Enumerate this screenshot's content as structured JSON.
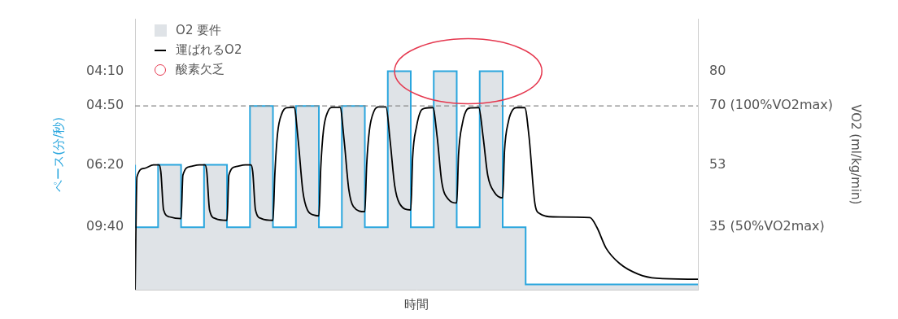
{
  "chart_data": {
    "type": "line",
    "x_label": "時間",
    "y_label": "ペース(分/秒)",
    "y2_label": "VO2 (ml/kg/min)",
    "xlim": [
      0,
      24.5
    ],
    "ylim": [
      17,
      95
    ],
    "yticks": [
      {
        "value": 35,
        "label": "09:40"
      },
      {
        "value": 53,
        "label": "06:20"
      },
      {
        "value": 70,
        "label": "04:50"
      },
      {
        "value": 80,
        "label": "04:10"
      }
    ],
    "y2lim": [
      17,
      95
    ],
    "y2ticks": [
      {
        "value": 35,
        "label": "35 (50%VO2max)"
      },
      53,
      {
        "value": 70,
        "label": "70 (100%VO2max)"
      },
      80
    ],
    "hline": 70,
    "grid": false,
    "legend": "upper left",
    "tick_labels": "y",
    "series": [
      {
        "name": "O2 要件",
        "type": "area",
        "line_style": "stepped",
        "color": "#2aa6de",
        "x": [
          0,
          1,
          2,
          3,
          4,
          5,
          6,
          7,
          8,
          9,
          10,
          11,
          12,
          13,
          14,
          15,
          16,
          17,
          20,
          24.5
        ],
        "values": [
          53,
          35,
          53,
          35,
          53,
          35,
          70,
          35,
          70,
          35,
          70,
          35,
          80,
          35,
          80,
          35,
          80,
          35,
          18.5,
          18.5
        ]
      },
      {
        "name": "運ばれるO2",
        "type": "line",
        "color": "#000000",
        "x": [
          0,
          0.08,
          0.4,
          0.8,
          1.04,
          1.12,
          1.24,
          1.5,
          2,
          2.08,
          2.4,
          2.8,
          3.04,
          3.12,
          3.24,
          3.5,
          4,
          4.08,
          4.4,
          4.8,
          5.04,
          5.12,
          5.24,
          5.5,
          6,
          6.08,
          6.2,
          6.4,
          6.6,
          6.92,
          7.1,
          7.3,
          7.5,
          7.8,
          8,
          8.08,
          8.2,
          8.4,
          8.6,
          8.92,
          9.1,
          9.3,
          9.5,
          10,
          10.08,
          10.2,
          10.4,
          10.6,
          10.92,
          11.1,
          11.3,
          11.5,
          12,
          12.08,
          12.25,
          12.45,
          12.6,
          12.96,
          13.15,
          13.35,
          13.65,
          14,
          14.08,
          14.25,
          14.45,
          14.6,
          14.96,
          15.15,
          15.35,
          15.65,
          16,
          16.08,
          16.25,
          16.45,
          16.6,
          16.96,
          17.15,
          17.4,
          17.6,
          18.2,
          19.8,
          20.1,
          20.5,
          21.1,
          21.9,
          22.7,
          24.5
        ],
        "values": [
          17,
          49.5,
          52,
          53,
          53,
          51,
          40,
          38,
          37.5,
          50,
          52.5,
          53,
          53,
          51,
          40,
          37.5,
          37,
          50,
          52.5,
          53,
          53,
          51,
          40,
          37.5,
          37,
          50,
          62,
          68,
          69.5,
          69.6,
          60,
          45.5,
          40,
          38.5,
          38.3,
          52,
          63,
          68.5,
          69.6,
          69.6,
          60,
          46,
          41,
          39.5,
          53,
          63,
          68.5,
          69.7,
          69.7,
          60,
          47,
          42,
          40,
          55,
          64,
          68.7,
          69.3,
          69.5,
          61,
          48,
          43,
          42,
          56,
          65,
          69,
          69.4,
          69.5,
          61,
          50,
          45,
          43.5,
          57,
          65.5,
          69,
          69.5,
          69.5,
          61,
          42,
          39,
          38,
          37.8,
          35,
          29,
          24.5,
          21.5,
          20.3,
          20
        ]
      }
    ],
    "annotation": {
      "text": "酸素欠乏",
      "color": "#e5384f"
    }
  }
}
